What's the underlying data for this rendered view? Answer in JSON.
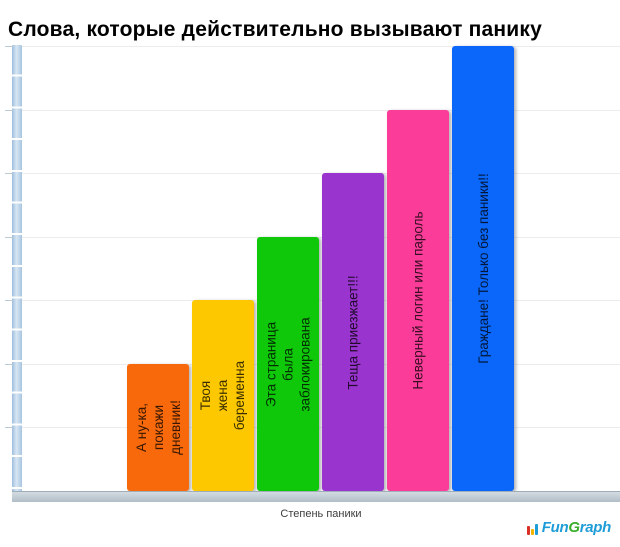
{
  "page": {
    "title": "Слова, которые действительно вызывают панику"
  },
  "axis": {
    "xlabel": "Степень паники"
  },
  "watermark": {
    "part1": "Fun",
    "part2": "G",
    "part3": "raph",
    "color_text": "#1E9CD7",
    "color_g": "#3BAE2C",
    "icon_bars": [
      {
        "name": "logo-bar-red",
        "color": "#d93025",
        "height": 9
      },
      {
        "name": "logo-bar-yellow",
        "color": "#f4b400",
        "height": 6
      },
      {
        "name": "logo-bar-blue",
        "color": "#1E9CD7",
        "height": 11
      }
    ]
  },
  "chart_data": {
    "type": "bar",
    "title": "Слова, которые действительно вызывают панику",
    "xlabel": "Степень паники",
    "ylabel": "",
    "ylim": [
      0,
      7
    ],
    "grid": true,
    "legend": false,
    "orientation": "vertical",
    "categories": [
      "А ну-ка, покажи дневник!",
      "Твоя жена беременна",
      "Эта страница была заблокирована",
      "Теща приезжает!!!",
      "Неверный логин или пароль",
      "Граждане! Только без паники!!"
    ],
    "values": [
      2,
      3,
      4,
      5,
      6,
      7
    ],
    "bars": [
      {
        "label": "А ну-ка,\nпокажи\nдневник!",
        "value": 2,
        "color": "#F8690B"
      },
      {
        "label": "Твоя\nжена\nбеременна",
        "value": 3,
        "color": "#FDC800"
      },
      {
        "label": "Эта страница\nбыла\nзаблокирована",
        "value": 4,
        "color": "#0FC80A"
      },
      {
        "label": "Теща приезжает!!!",
        "value": 5,
        "color": "#9934CE"
      },
      {
        "label": "Неверный логин или пароль",
        "value": 6,
        "color": "#FB3D99"
      },
      {
        "label": "Граждане! Только без паники!!",
        "value": 7,
        "color": "#0A67FA"
      }
    ],
    "gridline_color": "#ececec",
    "y_axis_bar_color": "#a6c5e1",
    "x_axis_bar_color": "#b1bec7"
  }
}
